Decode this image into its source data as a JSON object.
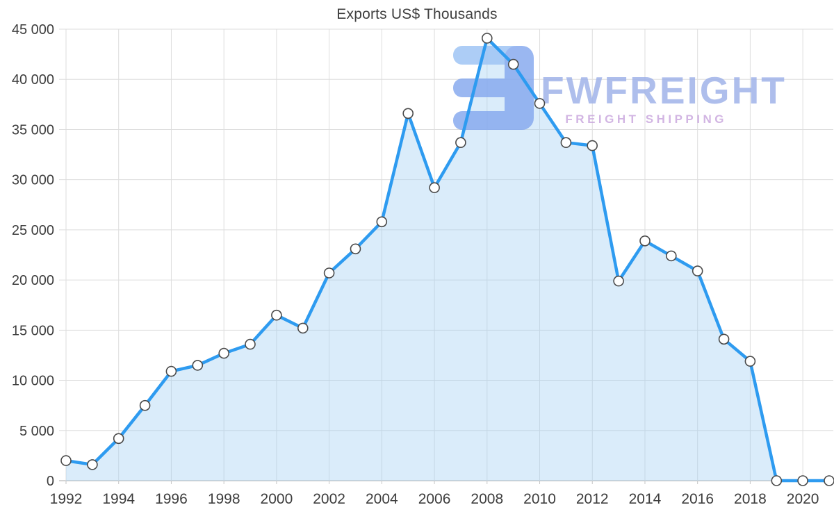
{
  "title": "Exports US$ Thousands",
  "watermark": {
    "brand": "FWFREIGHT",
    "tagline": "FREIGHT SHIPPING"
  },
  "chart_data": {
    "type": "area",
    "title": "Exports US$ Thousands",
    "x": [
      1992,
      1993,
      1994,
      1995,
      1996,
      1997,
      1998,
      1999,
      2000,
      2001,
      2002,
      2003,
      2004,
      2005,
      2006,
      2007,
      2008,
      2009,
      2010,
      2011,
      2012,
      2013,
      2014,
      2015,
      2016,
      2017,
      2018,
      2019,
      2020,
      2021
    ],
    "values": [
      2000,
      1600,
      4200,
      7500,
      10900,
      11500,
      12700,
      13600,
      16500,
      15200,
      20700,
      23100,
      25800,
      36600,
      29200,
      33700,
      44100,
      41500,
      37600,
      33700,
      33400,
      19900,
      23900,
      22400,
      20900,
      14100,
      11900,
      0,
      0,
      0
    ],
    "ylim": [
      0,
      45000
    ],
    "ytick_step": 5000,
    "xtick_years": [
      1992,
      1994,
      1996,
      1998,
      2000,
      2002,
      2004,
      2006,
      2008,
      2010,
      2012,
      2014,
      2016,
      2018,
      2020
    ],
    "grid": true,
    "legend": "none",
    "colors": {
      "line": "#2e9bf0",
      "fill": "rgba(158,206,243,0.38)",
      "marker_fill": "#ffffff",
      "marker_stroke": "#4a4a4a",
      "grid": "#dddddd",
      "axis": "#c6c6c6",
      "tick_label": "#3d3d3d",
      "title": "#404040",
      "watermark_logo_light": "#9cc3f5",
      "watermark_logo_dark": "#85a8ee",
      "watermark_brand": "#9db0e9",
      "watermark_tagline": "#c9a6dd"
    }
  }
}
